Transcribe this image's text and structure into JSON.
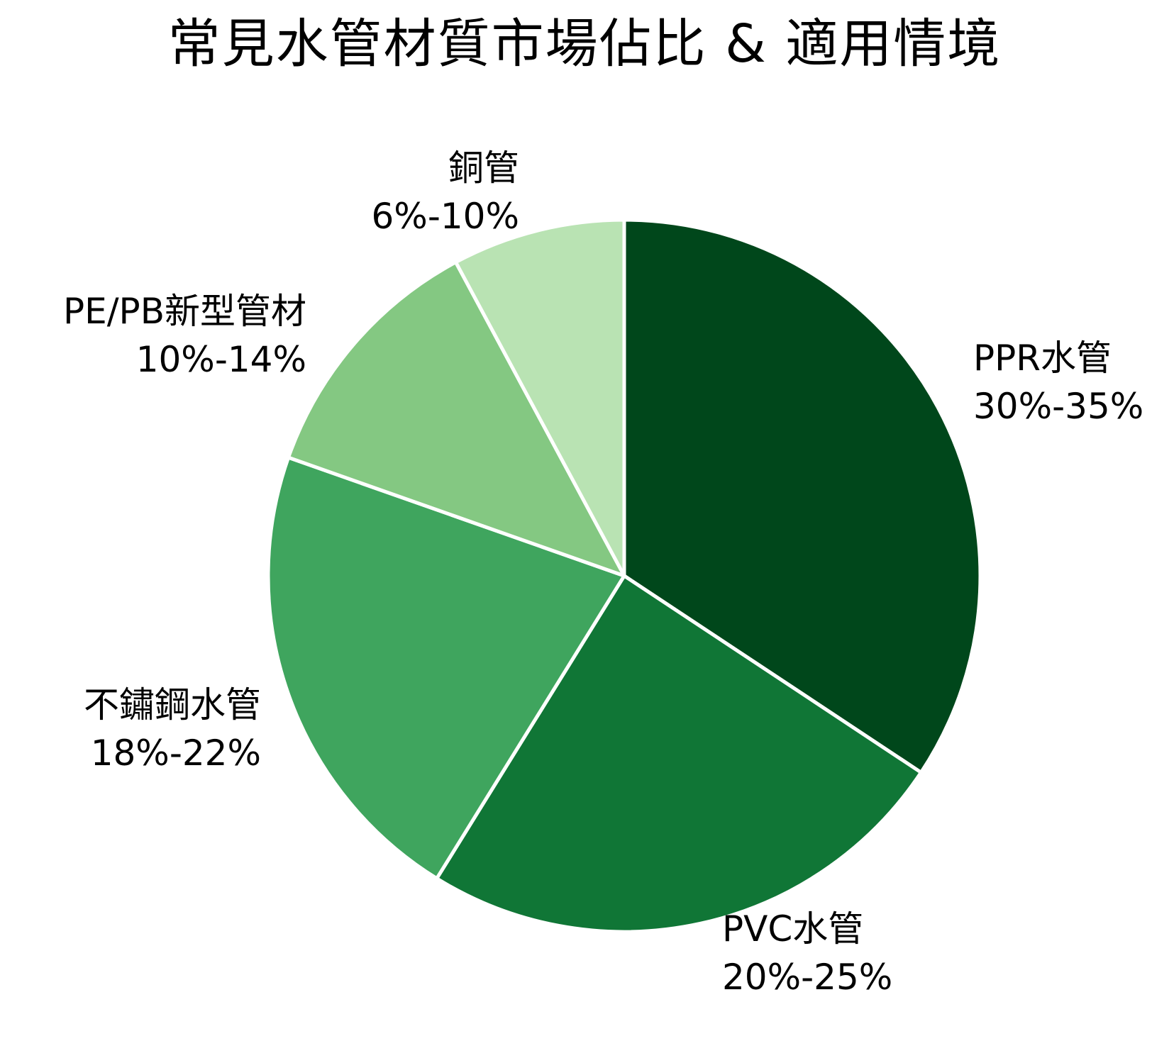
{
  "chart_data": {
    "type": "pie",
    "title": "常見水管材質市場佔比 & 適用情境",
    "start_angle": "top, clockwise",
    "slice_border_color": "#ffffff",
    "slices": [
      {
        "label": "PPR水管",
        "range": "30%-35%",
        "value": 35,
        "color": "#00471b"
      },
      {
        "label": "PVC水管",
        "range": "20%-25%",
        "value": 25,
        "color": "#107636"
      },
      {
        "label": "不鏽鋼水管",
        "range": "18%-22%",
        "value": 22,
        "color": "#3fa55e"
      },
      {
        "label": "PE/PB新型管材",
        "range": "10%-14%",
        "value": 12,
        "color": "#84c882"
      },
      {
        "label": "銅管",
        "range": "6%-10%",
        "value": 8,
        "color": "#b9e3b3"
      }
    ]
  }
}
